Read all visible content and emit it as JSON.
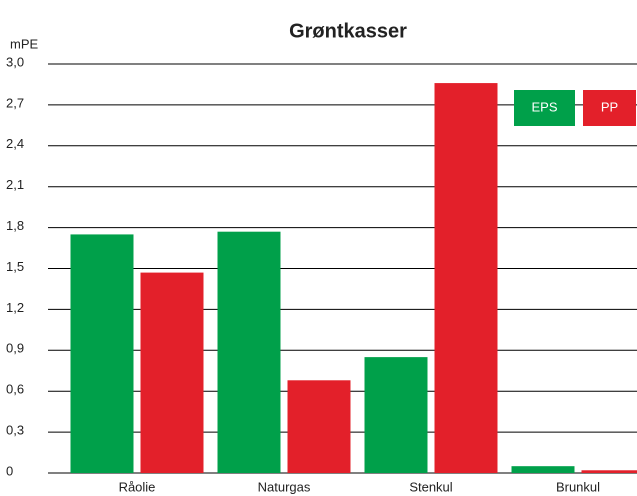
{
  "chart_data": {
    "type": "bar",
    "title": "Grøntkasser",
    "y_label": "mPE",
    "categories": [
      "Råolie",
      "Naturgas",
      "Stenkul",
      "Brunkul"
    ],
    "series": [
      {
        "name": "EPS",
        "color": "#00a04a",
        "values": [
          1.75,
          1.77,
          0.85,
          0.05
        ]
      },
      {
        "name": "PP",
        "color": "#e3202a",
        "values": [
          1.47,
          0.68,
          2.86,
          0.02
        ]
      }
    ],
    "ylim": [
      0,
      3
    ],
    "yticks": [
      0,
      {
        "value": 0.3,
        "label": "0,3"
      },
      {
        "value": 0.6,
        "label": "0,6"
      },
      {
        "value": 0.9,
        "label": "0,9"
      },
      {
        "value": 1.2,
        "label": "1,2"
      },
      {
        "value": 1.5,
        "label": "1,5"
      },
      {
        "value": 1.8,
        "label": "1,8"
      },
      {
        "value": 2.1,
        "label": "2,1"
      },
      {
        "value": 2.4,
        "label": "2,4"
      },
      {
        "value": 2.7,
        "label": "2,7"
      },
      {
        "value": 3,
        "label": "3,0"
      }
    ],
    "grid": true,
    "legend": "top-right"
  }
}
